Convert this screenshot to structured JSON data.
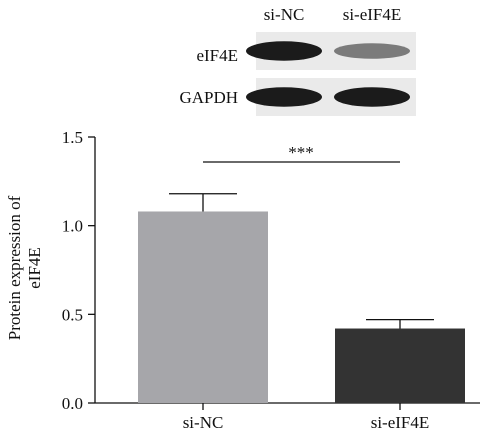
{
  "blot": {
    "lane_labels": [
      "si-NC",
      "si-eIF4E"
    ],
    "row_labels": [
      "eIF4E",
      "GAPDH"
    ],
    "band_intensity": [
      [
        0.95,
        0.55
      ],
      [
        0.95,
        0.95
      ]
    ]
  },
  "chart_data": {
    "type": "bar",
    "categories": [
      "si-NC",
      "si-eIF4E"
    ],
    "values": [
      1.08,
      0.42
    ],
    "errors": [
      0.1,
      0.05
    ],
    "bar_colors": [
      "#a6a6aa",
      "#333333"
    ],
    "ylabel_line1": "Protein expression of",
    "ylabel_line2": "eIF4E",
    "xlabel": "",
    "ylim": [
      0,
      1.5
    ],
    "yticks": [
      0.0,
      0.5,
      1.0,
      1.5
    ],
    "ytick_labels": [
      "0.0",
      "0.5",
      "1.0",
      "1.5"
    ],
    "significance": "***",
    "grid": false
  }
}
